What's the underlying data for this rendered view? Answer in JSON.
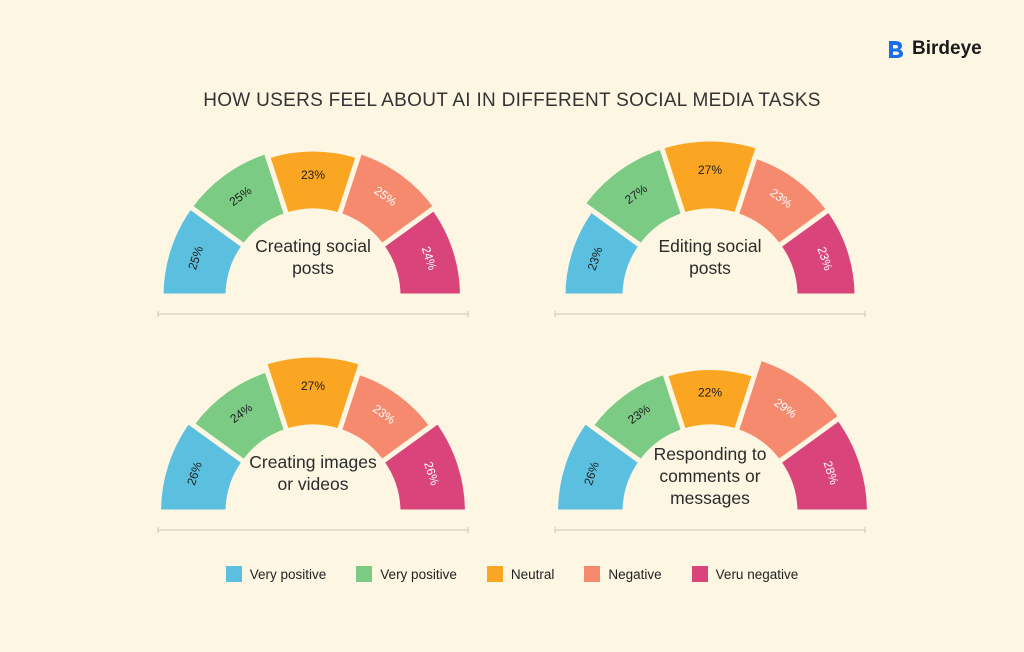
{
  "brand": {
    "name": "Birdeye",
    "icon": "birdeye-logo-icon",
    "color": "#1a6fe8"
  },
  "colors": {
    "very_positive_blue": "#5bbfe0",
    "very_positive_green": "#7ccb84",
    "neutral": "#fba623",
    "negative": "#f58a6f",
    "very_negative": "#d9457a",
    "background": "#fdf6e3"
  },
  "legend": [
    {
      "label": "Very positive",
      "color": "#5bbfe0"
    },
    {
      "label": "Very positive",
      "color": "#7ccb84"
    },
    {
      "label": "Neutral",
      "color": "#fba623"
    },
    {
      "label": "Negative",
      "color": "#f58a6f"
    },
    {
      "label": "Veru negative",
      "color": "#d9457a"
    }
  ],
  "chart_data": {
    "type": "gauge",
    "title": "HOW USERS FEEL ABOUT AI IN DIFFERENT SOCIAL MEDIA TASKS",
    "series_colors": [
      "#5bbfe0",
      "#7ccb84",
      "#fba623",
      "#f58a6f",
      "#d9457a"
    ],
    "charts": [
      {
        "label_lines": [
          "Creating social",
          "posts"
        ],
        "values": [
          25,
          25,
          23,
          25,
          24
        ]
      },
      {
        "label_lines": [
          "Editing social",
          "posts"
        ],
        "values": [
          23,
          27,
          27,
          23,
          23
        ]
      },
      {
        "label_lines": [
          "Creating images",
          "or videos"
        ],
        "values": [
          26,
          24,
          27,
          23,
          26
        ]
      },
      {
        "label_lines": [
          "Responding to",
          "comments or",
          "messages"
        ],
        "values": [
          26,
          23,
          22,
          29,
          28
        ]
      }
    ]
  }
}
